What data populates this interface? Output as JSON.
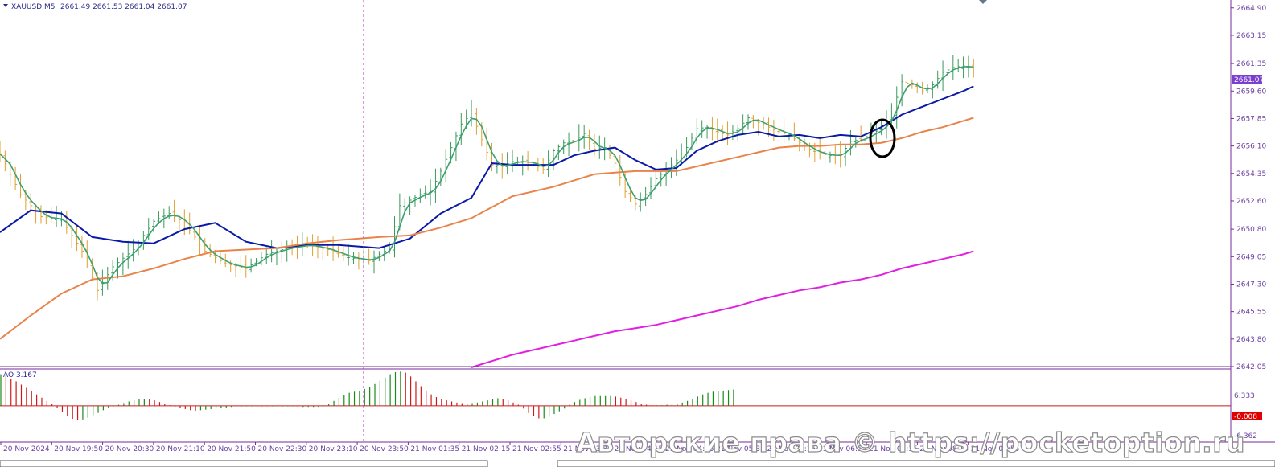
{
  "header": {
    "symbol": "XAUUSD,M5",
    "ohlc": "2661.49 2661.53 2661.04 2661.07"
  },
  "price_axis": {
    "ticks": [
      "2664.90",
      "2663.15",
      "2661.35",
      "2659.60",
      "2657.85",
      "2656.10",
      "2654.35",
      "2652.60",
      "2650.80",
      "2649.05",
      "2647.30",
      "2645.55",
      "2643.80",
      "2642.05"
    ],
    "current_price": "2661.07",
    "current_price_value": 2661.07,
    "current_price_bg": "#7b3fd0"
  },
  "ao_panel": {
    "label": "AO 3.167",
    "top_value": "6.333",
    "current_value": "-0.008",
    "bottom_value": "-6.362",
    "current_bg": "#e00000"
  },
  "time_axis": {
    "labels": [
      "20 Nov 2024",
      "20 Nov 19:50",
      "20 Nov 20:30",
      "20 Nov 21:10",
      "20 Nov 21:50",
      "20 Nov 22:30",
      "20 Nov 23:10",
      "20 Nov 23:50",
      "21 Nov 01:35",
      "21 Nov 02:15",
      "21 Nov 02:55",
      "21 Nov 03:35",
      "21 Nov 04:15",
      "21 Nov 04:55",
      "21 Nov 05:35",
      "21 Nov 06:15",
      "21 Nov 06:55",
      "21 Nov 07:35",
      "21 Nov 08:15",
      "21 Nov 08:55"
    ]
  },
  "watermark": "Авторские права © https://pocketoption.ru",
  "colors": {
    "bull_bar": "#3a9a5a",
    "bear_bar": "#e0a030",
    "ma_fast": "#3aa070",
    "ma_mid": "#0a1aa8",
    "ma_slow": "#e8844a",
    "ma_long": "#e020e0",
    "ao_up": "#1a8a1a",
    "ao_down": "#cc1a1a"
  },
  "chart_data": [
    {
      "type": "ohlc-bars",
      "symbol": "XAUUSD",
      "timeframe": "M5",
      "ylim": [
        2642.05,
        2665.4
      ],
      "grid": false,
      "close_path": [
        [
          0,
          2655.6
        ],
        [
          4,
          2653.0
        ],
        [
          8,
          2651.6
        ],
        [
          12,
          2651.4
        ],
        [
          16,
          2649.4
        ],
        [
          19,
          2646.9
        ],
        [
          22,
          2648.4
        ],
        [
          26,
          2649.5
        ],
        [
          30,
          2651.3
        ],
        [
          33,
          2651.8
        ],
        [
          36,
          2651.2
        ],
        [
          40,
          2649.4
        ],
        [
          44,
          2648.6
        ],
        [
          48,
          2648.3
        ],
        [
          52,
          2649.2
        ],
        [
          56,
          2649.6
        ],
        [
          60,
          2649.8
        ],
        [
          64,
          2649.5
        ],
        [
          68,
          2649.0
        ],
        [
          72,
          2648.8
        ],
        [
          76,
          2649.6
        ],
        [
          78,
          2652.3
        ],
        [
          82,
          2653.0
        ],
        [
          84,
          2653.2
        ],
        [
          86,
          2654.5
        ],
        [
          88,
          2656.0
        ],
        [
          90,
          2657.5
        ],
        [
          92,
          2658.2
        ],
        [
          94,
          2656.5
        ],
        [
          96,
          2654.9
        ],
        [
          98,
          2654.8
        ],
        [
          100,
          2655.1
        ],
        [
          102,
          2655.1
        ],
        [
          104,
          2655.0
        ],
        [
          106,
          2654.6
        ],
        [
          108,
          2655.8
        ],
        [
          110,
          2656.3
        ],
        [
          112,
          2656.4
        ],
        [
          114,
          2656.9
        ],
        [
          116,
          2655.9
        ],
        [
          118,
          2656.0
        ],
        [
          120,
          2655.0
        ],
        [
          122,
          2653.2
        ],
        [
          124,
          2652.4
        ],
        [
          126,
          2653.0
        ],
        [
          128,
          2654.0
        ],
        [
          130,
          2654.6
        ],
        [
          132,
          2655.2
        ],
        [
          134,
          2656.0
        ],
        [
          136,
          2657.2
        ],
        [
          138,
          2657.3
        ],
        [
          140,
          2657.0
        ],
        [
          142,
          2656.8
        ],
        [
          144,
          2657.2
        ],
        [
          146,
          2657.9
        ],
        [
          148,
          2657.6
        ],
        [
          150,
          2657.3
        ],
        [
          152,
          2657.0
        ],
        [
          154,
          2656.8
        ],
        [
          156,
          2656.3
        ],
        [
          158,
          2655.9
        ],
        [
          160,
          2655.6
        ],
        [
          162,
          2655.5
        ],
        [
          164,
          2655.5
        ],
        [
          166,
          2656.4
        ],
        [
          168,
          2656.5
        ],
        [
          170,
          2656.9
        ],
        [
          172,
          2657.2
        ],
        [
          174,
          2658.2
        ],
        [
          176,
          2660.2
        ],
        [
          178,
          2660.0
        ],
        [
          180,
          2659.6
        ],
        [
          182,
          2660.0
        ],
        [
          184,
          2660.8
        ],
        [
          186,
          2661.1
        ],
        [
          188,
          2661.2
        ],
        [
          190,
          2661.07
        ]
      ],
      "moving_averages": [
        {
          "points": [
            [
              0,
              2650.6
            ],
            [
              6,
              2652.0
            ],
            [
              12,
              2651.8
            ],
            [
              18,
              2650.3
            ],
            [
              24,
              2650.0
            ],
            [
              30,
              2649.9
            ],
            [
              36,
              2650.8
            ],
            [
              42,
              2651.2
            ],
            [
              48,
              2650.0
            ],
            [
              54,
              2649.6
            ],
            [
              60,
              2649.8
            ],
            [
              66,
              2649.8
            ],
            [
              74,
              2649.6
            ],
            [
              80,
              2650.2
            ],
            [
              86,
              2651.8
            ],
            [
              92,
              2652.8
            ],
            [
              96,
              2655.0
            ],
            [
              100,
              2654.9
            ],
            [
              104,
              2654.9
            ],
            [
              108,
              2654.9
            ],
            [
              112,
              2655.5
            ],
            [
              116,
              2655.8
            ],
            [
              120,
              2656.0
            ],
            [
              124,
              2655.2
            ],
            [
              128,
              2654.6
            ],
            [
              132,
              2654.7
            ],
            [
              136,
              2655.8
            ],
            [
              140,
              2656.4
            ],
            [
              144,
              2656.8
            ],
            [
              148,
              2657.0
            ],
            [
              152,
              2656.7
            ],
            [
              156,
              2656.8
            ],
            [
              160,
              2656.6
            ],
            [
              164,
              2656.8
            ],
            [
              168,
              2656.7
            ],
            [
              172,
              2657.3
            ],
            [
              176,
              2658.1
            ],
            [
              180,
              2658.6
            ],
            [
              184,
              2659.1
            ],
            [
              188,
              2659.6
            ],
            [
              190,
              2659.9
            ]
          ]
        },
        {
          "points": [
            [
              0,
              2643.8
            ],
            [
              6,
              2645.3
            ],
            [
              12,
              2646.7
            ],
            [
              18,
              2647.6
            ],
            [
              24,
              2647.8
            ],
            [
              30,
              2648.3
            ],
            [
              36,
              2648.9
            ],
            [
              42,
              2649.4
            ],
            [
              48,
              2649.5
            ],
            [
              54,
              2649.6
            ],
            [
              60,
              2649.9
            ],
            [
              66,
              2650.1
            ],
            [
              74,
              2650.3
            ],
            [
              80,
              2650.4
            ],
            [
              86,
              2650.9
            ],
            [
              92,
              2651.5
            ],
            [
              96,
              2652.2
            ],
            [
              100,
              2652.9
            ],
            [
              104,
              2653.2
            ],
            [
              108,
              2653.5
            ],
            [
              112,
              2653.9
            ],
            [
              116,
              2654.3
            ],
            [
              120,
              2654.4
            ],
            [
              124,
              2654.5
            ],
            [
              128,
              2654.5
            ],
            [
              132,
              2654.5
            ],
            [
              136,
              2654.8
            ],
            [
              140,
              2655.1
            ],
            [
              144,
              2655.4
            ],
            [
              148,
              2655.7
            ],
            [
              152,
              2656.0
            ],
            [
              156,
              2656.1
            ],
            [
              160,
              2656.1
            ],
            [
              164,
              2656.2
            ],
            [
              168,
              2656.2
            ],
            [
              172,
              2656.3
            ],
            [
              176,
              2656.6
            ],
            [
              180,
              2657.0
            ],
            [
              184,
              2657.3
            ],
            [
              188,
              2657.7
            ],
            [
              190,
              2657.9
            ]
          ]
        },
        {
          "points": [
            [
              92,
              2642.0
            ],
            [
              96,
              2642.4
            ],
            [
              100,
              2642.8
            ],
            [
              104,
              2643.1
            ],
            [
              108,
              2643.4
            ],
            [
              112,
              2643.7
            ],
            [
              116,
              2644.0
            ],
            [
              120,
              2644.3
            ],
            [
              124,
              2644.5
            ],
            [
              128,
              2644.7
            ],
            [
              132,
              2645.0
            ],
            [
              136,
              2645.3
            ],
            [
              140,
              2645.6
            ],
            [
              144,
              2645.9
            ],
            [
              148,
              2646.3
            ],
            [
              152,
              2646.6
            ],
            [
              156,
              2646.9
            ],
            [
              160,
              2647.1
            ],
            [
              164,
              2647.4
            ],
            [
              168,
              2647.6
            ],
            [
              172,
              2647.9
            ],
            [
              176,
              2648.3
            ],
            [
              180,
              2648.6
            ],
            [
              184,
              2648.9
            ],
            [
              188,
              2649.2
            ],
            [
              190,
              2649.4
            ]
          ]
        }
      ]
    },
    {
      "type": "bar",
      "title": "AO 3.167",
      "ylim": [
        -6.362,
        6.333
      ],
      "values": [
        5.8,
        5.4,
        5.0,
        4.5,
        3.9,
        3.3,
        2.7,
        2.1,
        1.5,
        0.9,
        0.3,
        -0.3,
        -1.2,
        -1.9,
        -2.4,
        -2.6,
        -2.5,
        -2.2,
        -1.7,
        -1.3,
        -0.8,
        -0.4,
        -0.1,
        0.2,
        0.5,
        0.8,
        1.0,
        1.2,
        1.3,
        1.2,
        1.0,
        0.7,
        0.4,
        0.1,
        -0.2,
        -0.4,
        -0.6,
        -0.8,
        -0.9,
        -0.8,
        -0.7,
        -0.6,
        -0.5,
        -0.4,
        -0.3,
        -0.2,
        -0.1,
        -0.1,
        -0.1,
        -0.1,
        -0.1,
        -0.1,
        -0.1,
        -0.1,
        -0.1,
        -0.1,
        -0.1,
        -0.1,
        -0.2,
        -0.2,
        -0.2,
        -0.2,
        -0.2,
        -0.1,
        0.3,
        0.9,
        1.5,
        2.0,
        2.4,
        2.6,
        2.8,
        3.1,
        3.5,
        4.0,
        4.6,
        5.2,
        5.8,
        6.2,
        6.3,
        6.1,
        5.4,
        4.5,
        3.6,
        2.8,
        2.1,
        1.6,
        1.2,
        1.0,
        0.8,
        0.6,
        0.5,
        0.4,
        0.5,
        0.6,
        0.8,
        1.0,
        1.2,
        1.4,
        1.3,
        1.0,
        0.6,
        0.2,
        -0.5,
        -1.3,
        -1.9,
        -2.3,
        -2.3,
        -2.0,
        -1.5,
        -1.0,
        -0.5,
        0.2,
        0.7,
        1.1,
        1.4,
        1.6,
        1.8,
        1.8,
        1.8,
        1.8,
        1.7,
        1.5,
        1.3,
        1.0,
        0.7,
        0.4,
        0.2,
        0.1,
        0.1,
        0.1,
        0.2,
        0.3,
        0.4,
        0.6,
        0.9,
        1.3,
        1.7,
        2.1,
        2.4,
        2.6,
        2.7,
        2.8,
        2.9,
        3.0
      ]
    }
  ]
}
